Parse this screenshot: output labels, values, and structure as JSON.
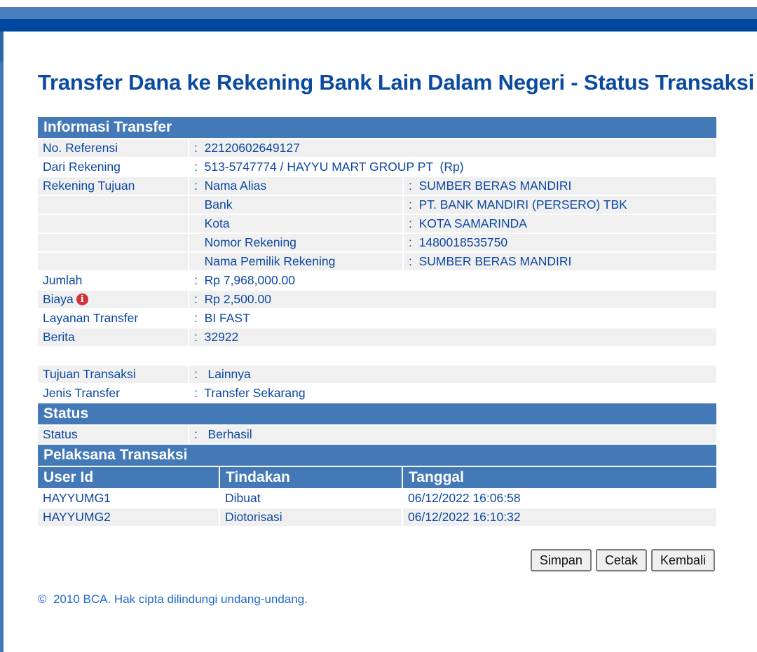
{
  "title": "Transfer Dana ke Rekening Bank Lain Dalam Negeri - Status Transaksi",
  "sections": {
    "info": "Informasi Transfer",
    "status": "Status",
    "pelaksana": "Pelaksana Transaksi"
  },
  "sep": ":",
  "info": {
    "no_ref": {
      "label": "No. Referensi",
      "value": "22120602649127"
    },
    "dari": {
      "label": "Dari Rekening",
      "value": "513-5747774 / HAYYU MART GROUP PT  (Rp)"
    },
    "tujuan_label": "Rekening Tujuan",
    "tujuan": [
      {
        "label": "Nama Alias",
        "value": "SUMBER BERAS MANDIRI"
      },
      {
        "label": "Bank",
        "value": "PT. BANK MANDIRI (PERSERO) TBK"
      },
      {
        "label": "Kota",
        "value": "KOTA SAMARINDA"
      },
      {
        "label": "Nomor Rekening",
        "value": "1480018535750"
      },
      {
        "label": "Nama Pemilik Rekening",
        "value": "SUMBER BERAS MANDIRI"
      }
    ],
    "jumlah": {
      "label": "Jumlah",
      "value": "Rp 7,968,000.00"
    },
    "biaya": {
      "label": "Biaya",
      "value": "Rp 2,500.00",
      "icon": "info-icon",
      "icon_glyph": "i"
    },
    "layanan": {
      "label": "Layanan Transfer",
      "value": "BI FAST"
    },
    "berita": {
      "label": "Berita",
      "value": "32922"
    },
    "tujuan_transaksi": {
      "label": "Tujuan Transaksi",
      "value": "Lainnya"
    },
    "jenis": {
      "label": "Jenis Transfer",
      "value": "Transfer Sekarang"
    }
  },
  "status": {
    "label": "Status",
    "value": "Berhasil"
  },
  "pelaksana": {
    "headers": [
      "User Id",
      "Tindakan",
      "Tanggal"
    ],
    "rows": [
      [
        "HAYYUMG1",
        "Dibuat",
        "06/12/2022 16:06:58"
      ],
      [
        "HAYYUMG2",
        "Diotorisasi",
        "06/12/2022 16:10:32"
      ]
    ]
  },
  "buttons": {
    "simpan": "Simpan",
    "cetak": "Cetak",
    "kembali": "Kembali"
  },
  "footer": "©  2010 BCA. Hak cipta dilindungi undang-undang.",
  "colors": {
    "header": "#4279b6",
    "text": "#0d47a1",
    "topbar": "#0047a0"
  }
}
